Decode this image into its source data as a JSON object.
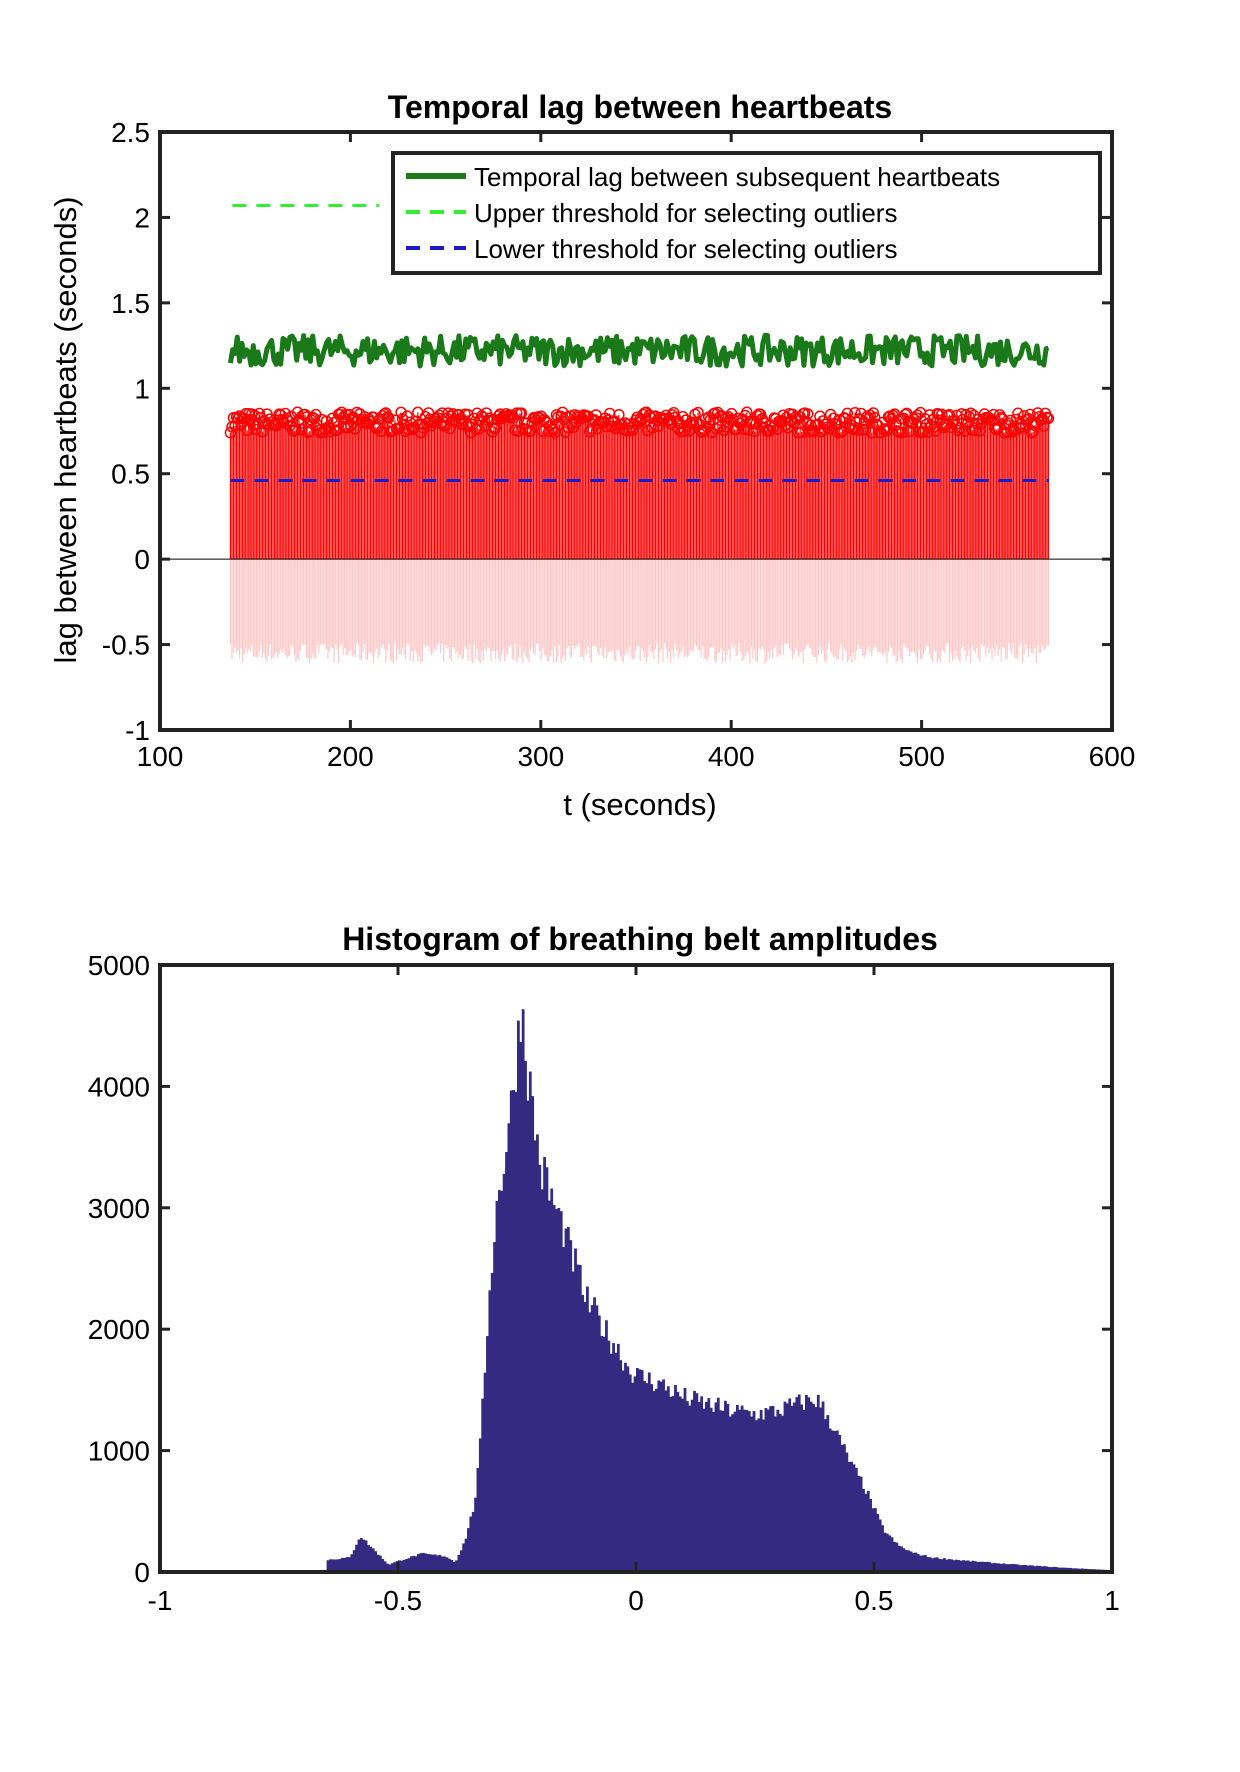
{
  "chart_data": [
    {
      "type": "line",
      "title": "Temporal lag between heartbeats",
      "xlabel": "t (seconds)",
      "ylabel": "lag between heartbeats (seconds)",
      "xlim": [
        100,
        600
      ],
      "ylim": [
        -1,
        2.5
      ],
      "xticks": [
        100,
        200,
        300,
        400,
        500,
        600
      ],
      "yticks": [
        -1,
        -0.5,
        0,
        0.5,
        1,
        1.5,
        2,
        2.5
      ],
      "xtick_labels": [
        "100",
        "200",
        "300",
        "400",
        "500",
        "600"
      ],
      "ytick_labels": [
        "-1",
        "-0.5",
        "0",
        "0.5",
        "1",
        "1.5",
        "2",
        "2.5"
      ],
      "x_range": [
        137,
        567
      ],
      "legend": {
        "position": "top-right",
        "entries": [
          "Temporal lag between subsequent heartbeats",
          "Upper threshold for selecting outliers",
          "Lower threshold for selecting outliers"
        ]
      },
      "series": [
        {
          "name": "Temporal lag between subsequent heartbeats",
          "style": "solid",
          "color": "#1a7a1a",
          "mean": 1.22,
          "spread": 0.09
        },
        {
          "name": "Upper threshold for selecting outliers",
          "style": "dashed",
          "color": "#33ee33",
          "value": 2.07,
          "x_span": [
            138,
            215
          ]
        },
        {
          "name": "Lower threshold for selecting outliers",
          "style": "dashed",
          "color": "#1a1acc",
          "value": 0.46
        },
        {
          "name": "heartbeat stems (positive)",
          "style": "stem",
          "color": "#ff0000",
          "mean": 0.8,
          "spread": 0.06
        },
        {
          "name": "heartbeat stems (negative)",
          "style": "stem",
          "color": "#ffc8c8",
          "mean": -0.55,
          "spread": 0.06
        }
      ]
    },
    {
      "type": "bar",
      "title": "Histogram of breathing belt amplitudes",
      "xlabel": "",
      "ylabel": "",
      "xlim": [
        -1,
        1
      ],
      "ylim": [
        0,
        5000
      ],
      "xticks": [
        -1,
        -0.5,
        0,
        0.5,
        1
      ],
      "yticks": [
        0,
        1000,
        2000,
        3000,
        4000,
        5000
      ],
      "xtick_labels": [
        "-1",
        "-0.5",
        "0",
        "0.5",
        "1"
      ],
      "ytick_labels": [
        "0",
        "1000",
        "2000",
        "3000",
        "4000",
        "5000"
      ],
      "bar_color": "#342a82",
      "bins": [
        [
          -0.65,
          100
        ],
        [
          -0.6,
          120
        ],
        [
          -0.58,
          300
        ],
        [
          -0.55,
          180
        ],
        [
          -0.52,
          60
        ],
        [
          -0.5,
          90
        ],
        [
          -0.45,
          150
        ],
        [
          -0.4,
          130
        ],
        [
          -0.38,
          80
        ],
        [
          -0.36,
          250
        ],
        [
          -0.34,
          550
        ],
        [
          -0.33,
          900
        ],
        [
          -0.32,
          1500
        ],
        [
          -0.31,
          2200
        ],
        [
          -0.3,
          2700
        ],
        [
          -0.29,
          3100
        ],
        [
          -0.28,
          3300
        ],
        [
          -0.27,
          3600
        ],
        [
          -0.26,
          3900
        ],
        [
          -0.25,
          4300
        ],
        [
          -0.24,
          4700
        ],
        [
          -0.23,
          4200
        ],
        [
          -0.22,
          3900
        ],
        [
          -0.21,
          3600
        ],
        [
          -0.2,
          3300
        ],
        [
          -0.19,
          3250
        ],
        [
          -0.18,
          3100
        ],
        [
          -0.17,
          3000
        ],
        [
          -0.16,
          2900
        ],
        [
          -0.15,
          2800
        ],
        [
          -0.14,
          2650
        ],
        [
          -0.13,
          2550
        ],
        [
          -0.12,
          2450
        ],
        [
          -0.11,
          2300
        ],
        [
          -0.1,
          2200
        ],
        [
          -0.08,
          2100
        ],
        [
          -0.06,
          1950
        ],
        [
          -0.04,
          1850
        ],
        [
          -0.02,
          1700
        ],
        [
          0,
          1620
        ],
        [
          0.05,
          1550
        ],
        [
          0.1,
          1440
        ],
        [
          0.15,
          1380
        ],
        [
          0.2,
          1330
        ],
        [
          0.25,
          1300
        ],
        [
          0.3,
          1330
        ],
        [
          0.35,
          1400
        ],
        [
          0.38,
          1420
        ],
        [
          0.4,
          1300
        ],
        [
          0.42,
          1150
        ],
        [
          0.45,
          900
        ],
        [
          0.48,
          700
        ],
        [
          0.5,
          520
        ],
        [
          0.52,
          350
        ],
        [
          0.55,
          220
        ],
        [
          0.58,
          160
        ],
        [
          0.62,
          120
        ],
        [
          0.7,
          90
        ],
        [
          0.8,
          60
        ],
        [
          0.9,
          35
        ],
        [
          1.0,
          15
        ]
      ]
    }
  ]
}
